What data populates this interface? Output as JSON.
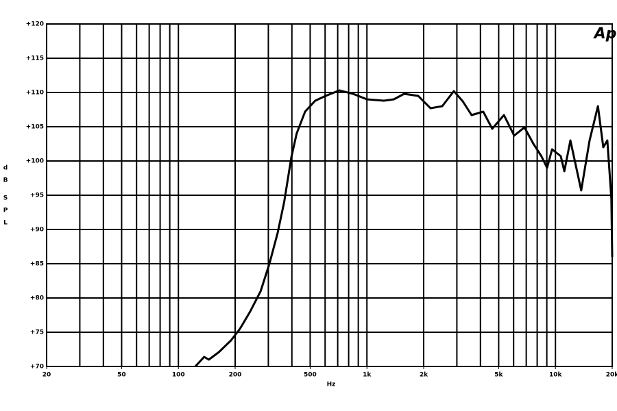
{
  "chart_data": {
    "type": "line",
    "logo": "Ap",
    "xlabel": "Hz",
    "ylabel": [
      "d",
      "B",
      "S",
      "P",
      "L"
    ],
    "xscale": "log",
    "grid": true,
    "xlim": [
      20,
      20000
    ],
    "ylim": [
      70,
      120
    ],
    "xticks": [
      20,
      50,
      100,
      200,
      500,
      {
        "value": 1000,
        "label": "1k"
      },
      {
        "value": 2000,
        "label": "2k"
      },
      {
        "value": 5000,
        "label": "5k"
      },
      {
        "value": 10000,
        "label": "10k"
      },
      {
        "value": 20000,
        "label": "20k"
      }
    ],
    "xgrid": [
      30,
      40,
      50,
      60,
      70,
      80,
      90,
      100,
      200,
      300,
      400,
      500,
      600,
      700,
      800,
      900,
      1000,
      2000,
      3000,
      4000,
      5000,
      6000,
      7000,
      8000,
      9000,
      10000,
      20000
    ],
    "yticks": [
      {
        "value": 70,
        "label": "+70"
      },
      {
        "value": 75,
        "label": "+75"
      },
      {
        "value": 80,
        "label": "+80"
      },
      {
        "value": 85,
        "label": "+85"
      },
      {
        "value": 90,
        "label": "+90"
      },
      {
        "value": 95,
        "label": "+95"
      },
      {
        "value": 100,
        "label": "+100"
      },
      {
        "value": 105,
        "label": "+105"
      },
      {
        "value": 110,
        "label": "+110"
      },
      {
        "value": 115,
        "label": "+115"
      },
      {
        "value": 120,
        "label": "+120"
      }
    ],
    "series": [
      {
        "color": "#000000",
        "x": [
          123,
          137,
          145,
          164,
          190,
          212,
          240,
          273,
          304,
          336,
          364,
          397,
          424,
          470,
          532,
          604,
          714,
          844,
          1000,
          1230,
          1390,
          1575,
          1870,
          2175,
          2510,
          2890,
          3225,
          3590,
          4140,
          4620,
          5330,
          6040,
          6850,
          7640,
          8420,
          9030,
          9600,
          10670,
          11150,
          12000,
          13700,
          15170,
          16800,
          17940,
          18850,
          19800,
          20000
        ],
        "values": [
          70,
          71.4,
          71,
          72.1,
          73.8,
          75.5,
          78,
          81,
          85,
          89.5,
          94,
          100.5,
          104,
          107.2,
          108.8,
          109.5,
          110.3,
          109.8,
          109,
          108.8,
          109,
          109.8,
          109.5,
          107.7,
          108,
          110.2,
          108.7,
          106.7,
          107.2,
          104.7,
          106.7,
          103.7,
          104.9,
          102.5,
          100.7,
          99,
          101.7,
          100.7,
          98.5,
          103,
          95.7,
          103,
          108,
          102,
          103,
          94.5,
          86
        ]
      }
    ]
  }
}
